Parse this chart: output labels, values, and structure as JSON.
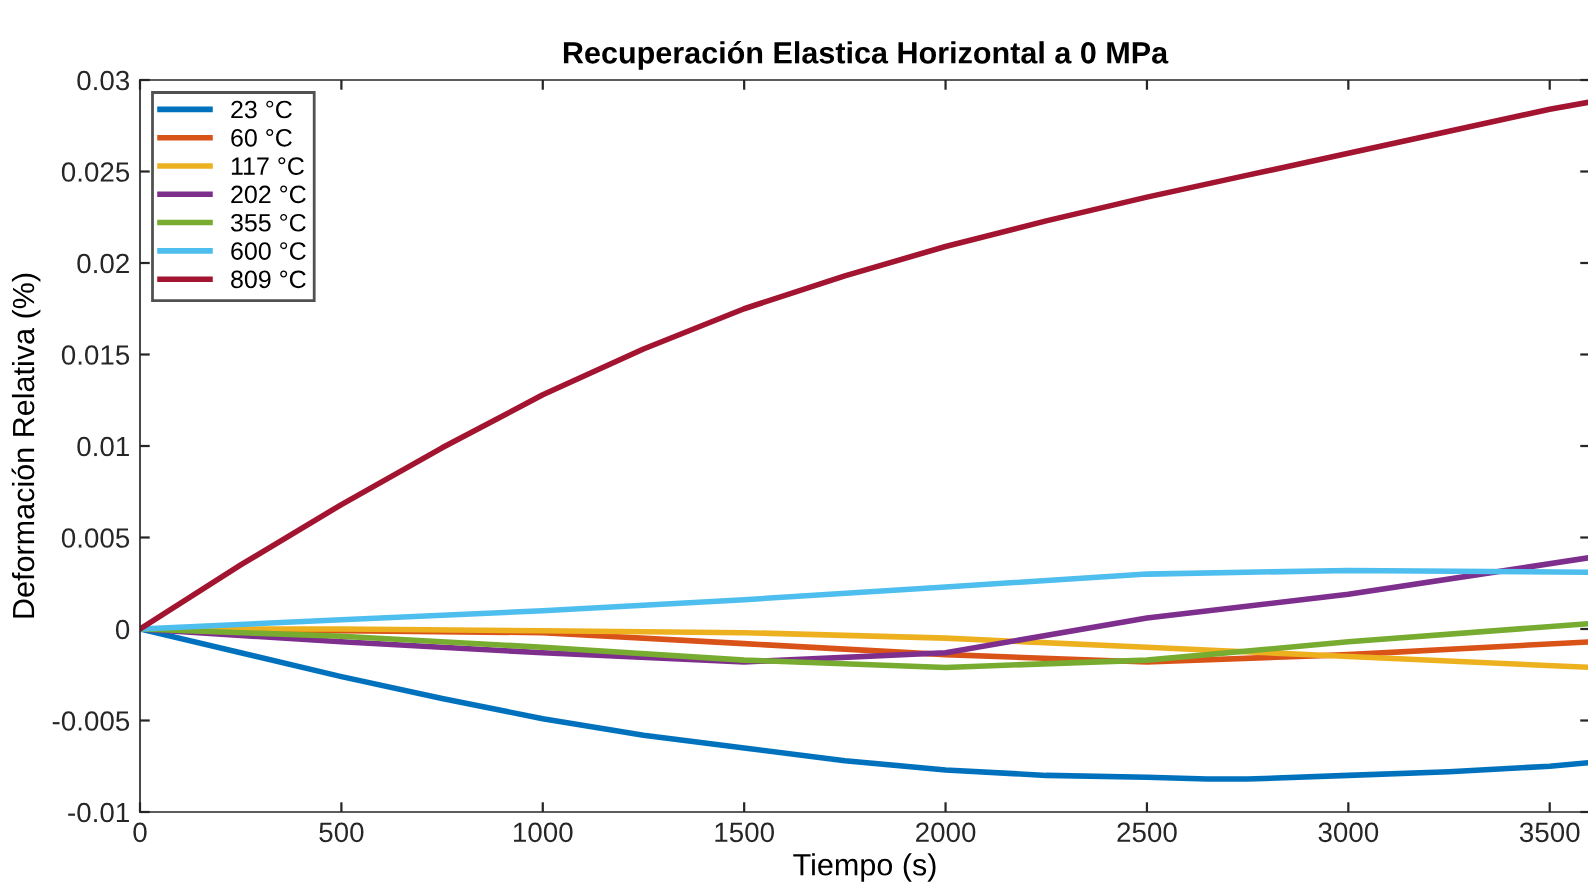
{
  "chart_data": {
    "type": "line",
    "title": "Recuperación Elastica Horizontal a 0 MPa",
    "xlabel": "Tiempo (s)",
    "ylabel": "Deformación Relativa (%)",
    "x": [
      0,
      500,
      1000,
      1500,
      2000,
      2500,
      3000,
      3600
    ],
    "series": [
      {
        "name": "23 °C",
        "color": "#0072bd",
        "x": [
          0,
          250,
          500,
          750,
          1000,
          1250,
          1500,
          1750,
          2000,
          2250,
          2500,
          2650,
          2750,
          3000,
          3250,
          3500,
          3600
        ],
        "values": [
          0,
          -0.0013,
          -0.0026,
          -0.0038,
          -0.0049,
          -0.0058,
          -0.0065,
          -0.0072,
          -0.0077,
          -0.008,
          -0.0081,
          -0.0082,
          -0.0082,
          -0.008,
          -0.0078,
          -0.0075,
          -0.0073
        ]
      },
      {
        "name": "60 °C",
        "color": "#d95319",
        "values": [
          0,
          -0.0001,
          -0.0002,
          -0.0008,
          -0.0014,
          -0.0018,
          -0.0014,
          -0.0007
        ]
      },
      {
        "name": "117 °C",
        "color": "#edb120",
        "values": [
          0,
          0,
          -0.0001,
          -0.0002,
          -0.0005,
          -0.001,
          -0.0015,
          -0.0021
        ]
      },
      {
        "name": "202 °C",
        "color": "#7e2f8e",
        "values": [
          0,
          -0.0007,
          -0.0013,
          -0.0018,
          -0.0013,
          0.0006,
          0.0019,
          0.0039
        ]
      },
      {
        "name": "355 °C",
        "color": "#77ac30",
        "values": [
          0,
          -0.0004,
          -0.001,
          -0.0017,
          -0.0021,
          -0.0017,
          -0.0007,
          0.0003
        ]
      },
      {
        "name": "600 °C",
        "color": "#4dbeee",
        "values": [
          0,
          0.0005,
          0.001,
          0.0016,
          0.0023,
          0.003,
          0.0032,
          0.0031
        ]
      },
      {
        "name": "809 °C",
        "color": "#a2142f",
        "x": [
          0,
          250,
          500,
          750,
          1000,
          1250,
          1500,
          1750,
          2000,
          2250,
          2500,
          2750,
          3000,
          3250,
          3500,
          3600
        ],
        "values": [
          0,
          0.0035,
          0.0068,
          0.0099,
          0.0128,
          0.0153,
          0.0175,
          0.0193,
          0.0209,
          0.0223,
          0.0236,
          0.0248,
          0.026,
          0.0272,
          0.0284,
          0.0288
        ]
      }
    ],
    "xlim": [
      0,
      3600
    ],
    "xticks": [
      0,
      500,
      1000,
      1500,
      2000,
      2500,
      3000,
      3500
    ],
    "ylim": [
      -0.01,
      0.03
    ],
    "yticks": [
      -0.01,
      -0.005,
      0,
      0.005,
      0.01,
      0.015,
      0.02,
      0.025,
      0.03
    ],
    "grid": false,
    "legend": "top left",
    "marker": "none",
    "line_style": "solid"
  }
}
